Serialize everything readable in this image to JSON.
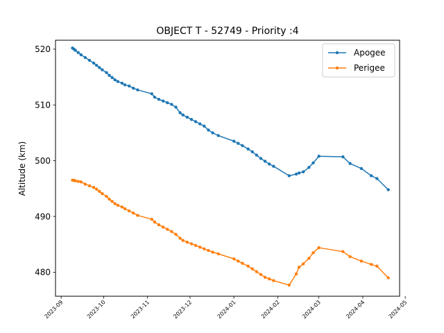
{
  "chart_data": {
    "type": "line",
    "title": "OBJECT T - 52749 - Priority :4",
    "xlabel": "",
    "ylabel": "Altitude (km)",
    "x_tick_labels": [
      "2023-09",
      "2023-10",
      "2023-11",
      "2023-12",
      "2024-01",
      "2024-02",
      "2024-03",
      "2024-04",
      "2024-05"
    ],
    "x_tick_dates": [
      "2023-09-01",
      "2023-10-01",
      "2023-11-01",
      "2023-12-01",
      "2024-01-01",
      "2024-02-01",
      "2024-03-01",
      "2024-04-01",
      "2024-05-01"
    ],
    "y_tick_labels": [
      "480",
      "490",
      "500",
      "510",
      "520"
    ],
    "y_ticks": [
      480,
      490,
      500,
      510,
      520
    ],
    "xlim": [
      "2023-08-28",
      "2024-04-27"
    ],
    "ylim": [
      475.7,
      521.6
    ],
    "grid": false,
    "legend_position": "top-right",
    "x": [
      "2023-09-09",
      "2023-09-10",
      "2023-09-11",
      "2023-09-13",
      "2023-09-15",
      "2023-09-18",
      "2023-09-21",
      "2023-09-24",
      "2023-09-26",
      "2023-09-28",
      "2023-09-30",
      "2023-10-03",
      "2023-10-05",
      "2023-10-07",
      "2023-10-09",
      "2023-10-11",
      "2023-10-14",
      "2023-10-16",
      "2023-10-19",
      "2023-10-22",
      "2023-10-25",
      "2023-11-04",
      "2023-11-06",
      "2023-11-09",
      "2023-11-12",
      "2023-11-15",
      "2023-11-18",
      "2023-11-21",
      "2023-11-24",
      "2023-11-26",
      "2023-11-29",
      "2023-12-02",
      "2023-12-05",
      "2023-12-08",
      "2023-12-11",
      "2023-12-14",
      "2023-12-17",
      "2023-12-21",
      "2024-01-01",
      "2024-01-04",
      "2024-01-07",
      "2024-01-11",
      "2024-01-14",
      "2024-01-17",
      "2024-01-20",
      "2024-01-23",
      "2024-01-26",
      "2024-01-29",
      "2024-02-09",
      "2024-02-14",
      "2024-02-16",
      "2024-02-19",
      "2024-02-23",
      "2024-02-26",
      "2024-03-01",
      "2024-03-18",
      "2024-03-23",
      "2024-03-31",
      "2024-04-07",
      "2024-04-11",
      "2024-04-19"
    ],
    "series": [
      {
        "name": "Apogee",
        "color": "#1f77b4",
        "values": [
          520.2,
          520.0,
          519.8,
          519.4,
          519.0,
          518.5,
          518.0,
          517.5,
          517.1,
          516.7,
          516.3,
          515.8,
          515.3,
          514.9,
          514.5,
          514.2,
          513.9,
          513.6,
          513.4,
          513.0,
          512.7,
          512.0,
          511.4,
          511.0,
          510.7,
          510.4,
          510.1,
          509.6,
          508.6,
          508.2,
          507.8,
          507.4,
          507.0,
          506.6,
          506.2,
          505.5,
          505.0,
          504.5,
          503.5,
          503.1,
          502.7,
          502.1,
          501.6,
          501.0,
          500.4,
          499.9,
          499.4,
          499.0,
          497.3,
          497.6,
          497.8,
          498.0,
          498.8,
          499.6,
          500.8,
          500.7,
          499.5,
          498.6,
          497.3,
          496.8,
          494.8
        ]
      },
      {
        "name": "Perigee",
        "color": "#ff7f0e",
        "values": [
          496.5,
          496.5,
          496.4,
          496.3,
          496.2,
          495.8,
          495.5,
          495.2,
          494.9,
          494.5,
          494.1,
          493.6,
          493.1,
          492.7,
          492.3,
          492.0,
          491.7,
          491.4,
          491.0,
          490.6,
          490.2,
          489.5,
          489.0,
          488.5,
          488.1,
          487.7,
          487.3,
          486.8,
          486.1,
          485.7,
          485.4,
          485.1,
          484.8,
          484.5,
          484.2,
          483.9,
          483.6,
          483.3,
          482.4,
          482.0,
          481.6,
          481.1,
          480.6,
          480.1,
          479.6,
          479.1,
          478.8,
          478.5,
          477.7,
          479.7,
          480.9,
          481.5,
          482.5,
          483.5,
          484.4,
          483.7,
          482.8,
          482.0,
          481.4,
          481.1,
          479.0
        ]
      }
    ]
  }
}
